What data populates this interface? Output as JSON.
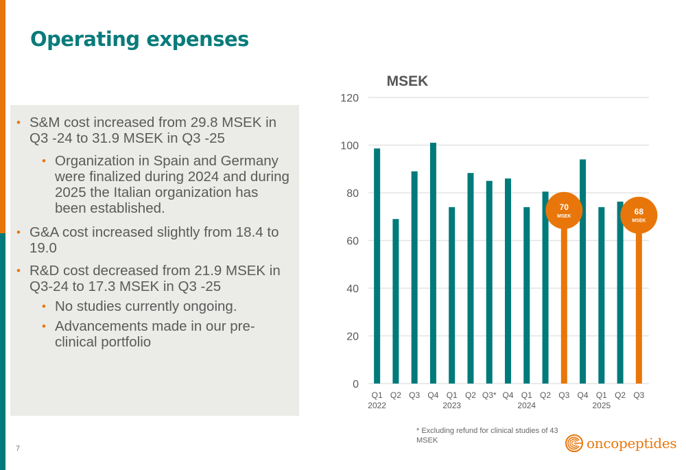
{
  "slide": {
    "title": "Operating expenses",
    "page_number": "7",
    "footnote": "* Excluding refund for clinical studies of 43 MSEK",
    "logo_text": "oncopeptides",
    "colors": {
      "teal": "#007A7A",
      "orange": "#E8760A",
      "panel": "#EBECE8"
    }
  },
  "bullets": [
    {
      "text": "S&M cost increased from 29.8  MSEK in Q3 -24 to 31.9 MSEK in Q3 -25",
      "sub": [
        "Organization in Spain and Germany were finalized during 2024 and during 2025 the Italian organization has been established."
      ]
    },
    {
      "text": "G&A cost increased slightly from 18.4 to 19.0",
      "sub": []
    },
    {
      "text": "R&D cost decreased from 21.9 MSEK in Q3-24 to 17.3 MSEK in Q3 -25",
      "sub": [
        "No studies currently ongoing.",
        "Advancements made in our pre-clinical portfolio"
      ]
    }
  ],
  "chart_data": {
    "type": "bar",
    "title": "MSEK",
    "xlabel": "",
    "ylabel": "",
    "ylim": [
      0,
      120
    ],
    "yticks": [
      0,
      20,
      40,
      60,
      80,
      100,
      120
    ],
    "grid": true,
    "categories": [
      "Q1",
      "Q2",
      "Q3",
      "Q4",
      "Q1",
      "Q2",
      "Q3*",
      "Q4",
      "Q1",
      "Q2",
      "Q3",
      "Q4",
      "Q1",
      "Q2",
      "Q3"
    ],
    "year_labels": [
      "2022",
      "",
      "",
      "",
      "2023",
      "",
      "",
      "",
      "2024",
      "",
      "",
      "",
      "2025",
      "",
      ""
    ],
    "values": [
      98.6,
      69,
      89,
      101,
      74,
      88.3,
      85,
      86,
      74,
      80.5,
      70,
      94,
      74,
      76.3,
      68
    ],
    "highlight": [
      false,
      false,
      false,
      false,
      false,
      false,
      false,
      false,
      false,
      false,
      true,
      false,
      false,
      false,
      true
    ],
    "annotations": [
      {
        "index": 10,
        "value": "70",
        "unit": "MSEK"
      },
      {
        "index": 14,
        "value": "68",
        "unit": "MSEK"
      }
    ]
  }
}
